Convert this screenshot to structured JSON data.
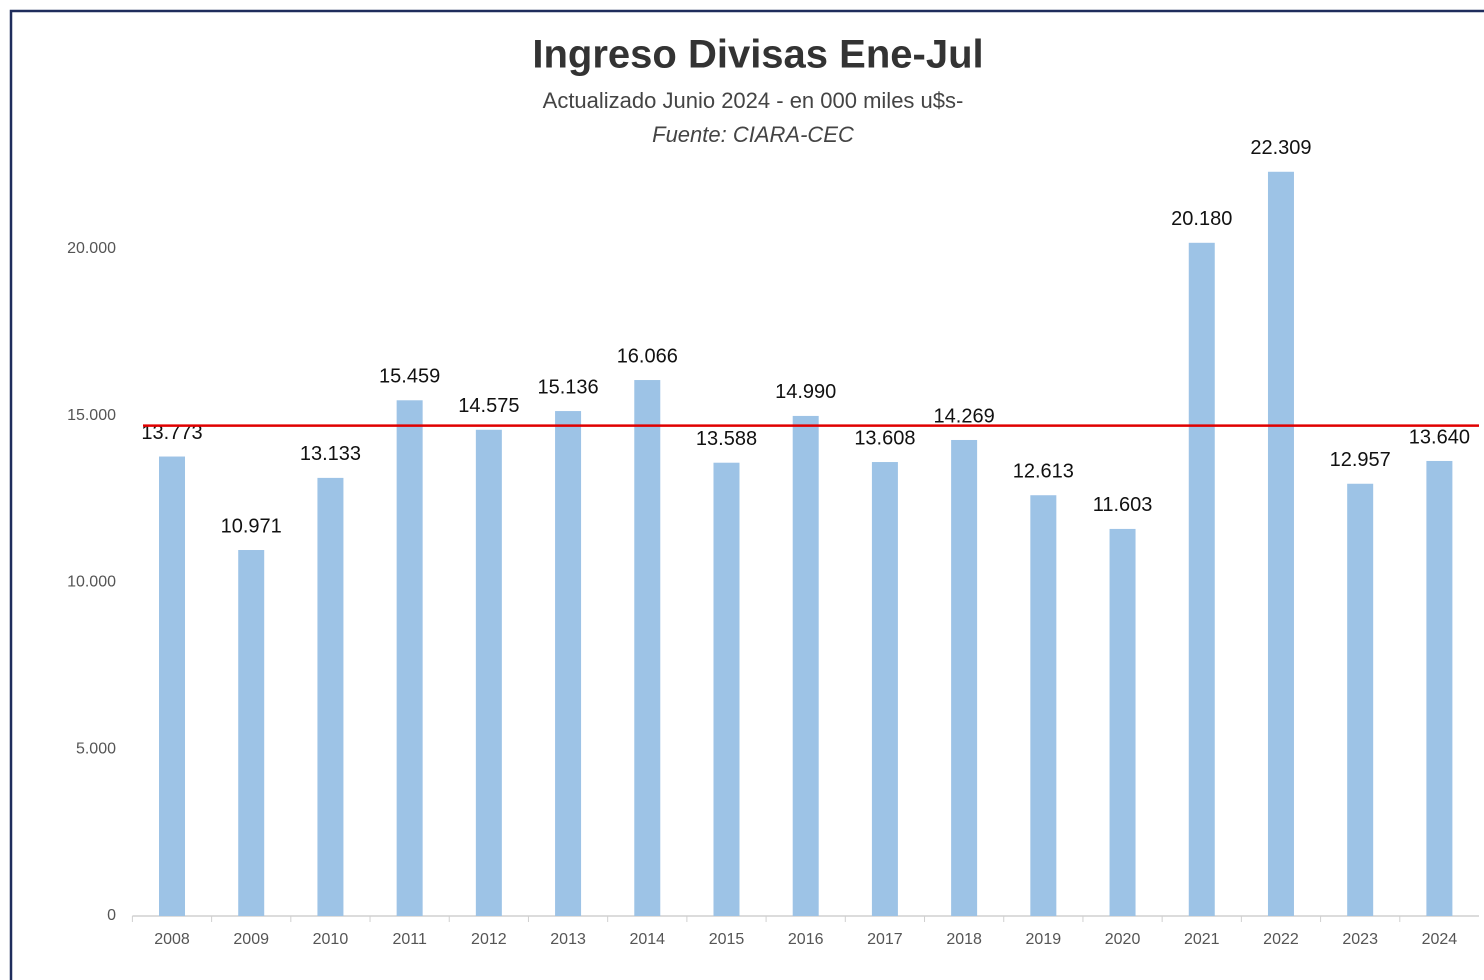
{
  "chart_data": {
    "type": "bar",
    "title": "Ingreso Divisas Ene-Jul",
    "subtitle": "Actualizado Junio  2024 - en 000  miles u$s-",
    "source": "Fuente: CIARA-CEC",
    "categories": [
      "2008",
      "2009",
      "2010",
      "2011",
      "2012",
      "2013",
      "2014",
      "2015",
      "2016",
      "2017",
      "2018",
      "2019",
      "2020",
      "2021",
      "2022",
      "2023",
      "2024"
    ],
    "values": [
      13773,
      10971,
      13133,
      15459,
      14575,
      15136,
      16066,
      13588,
      14990,
      13608,
      14269,
      12613,
      11603,
      20180,
      22309,
      12957,
      13640
    ],
    "value_labels": [
      "13.773",
      "10.971",
      "13.133",
      "15.459",
      "14.575",
      "15.136",
      "16.066",
      "13.588",
      "14.990",
      "13.608",
      "14.269",
      "12.613",
      "11.603",
      "20.180",
      "22.309",
      "12.957",
      "13.640"
    ],
    "color": "#9dc3e6",
    "ylim": [
      0,
      25000
    ],
    "yticks": [
      0,
      {
        "value": 5000,
        "label": "5.000"
      },
      {
        "value": 10000,
        "label": "10.000"
      },
      {
        "value": 15000,
        "label": "15.000"
      },
      {
        "value": 20000,
        "label": "20.000"
      }
    ],
    "grid": false,
    "reference_line": {
      "value": 14700,
      "color": "#e00000"
    }
  }
}
